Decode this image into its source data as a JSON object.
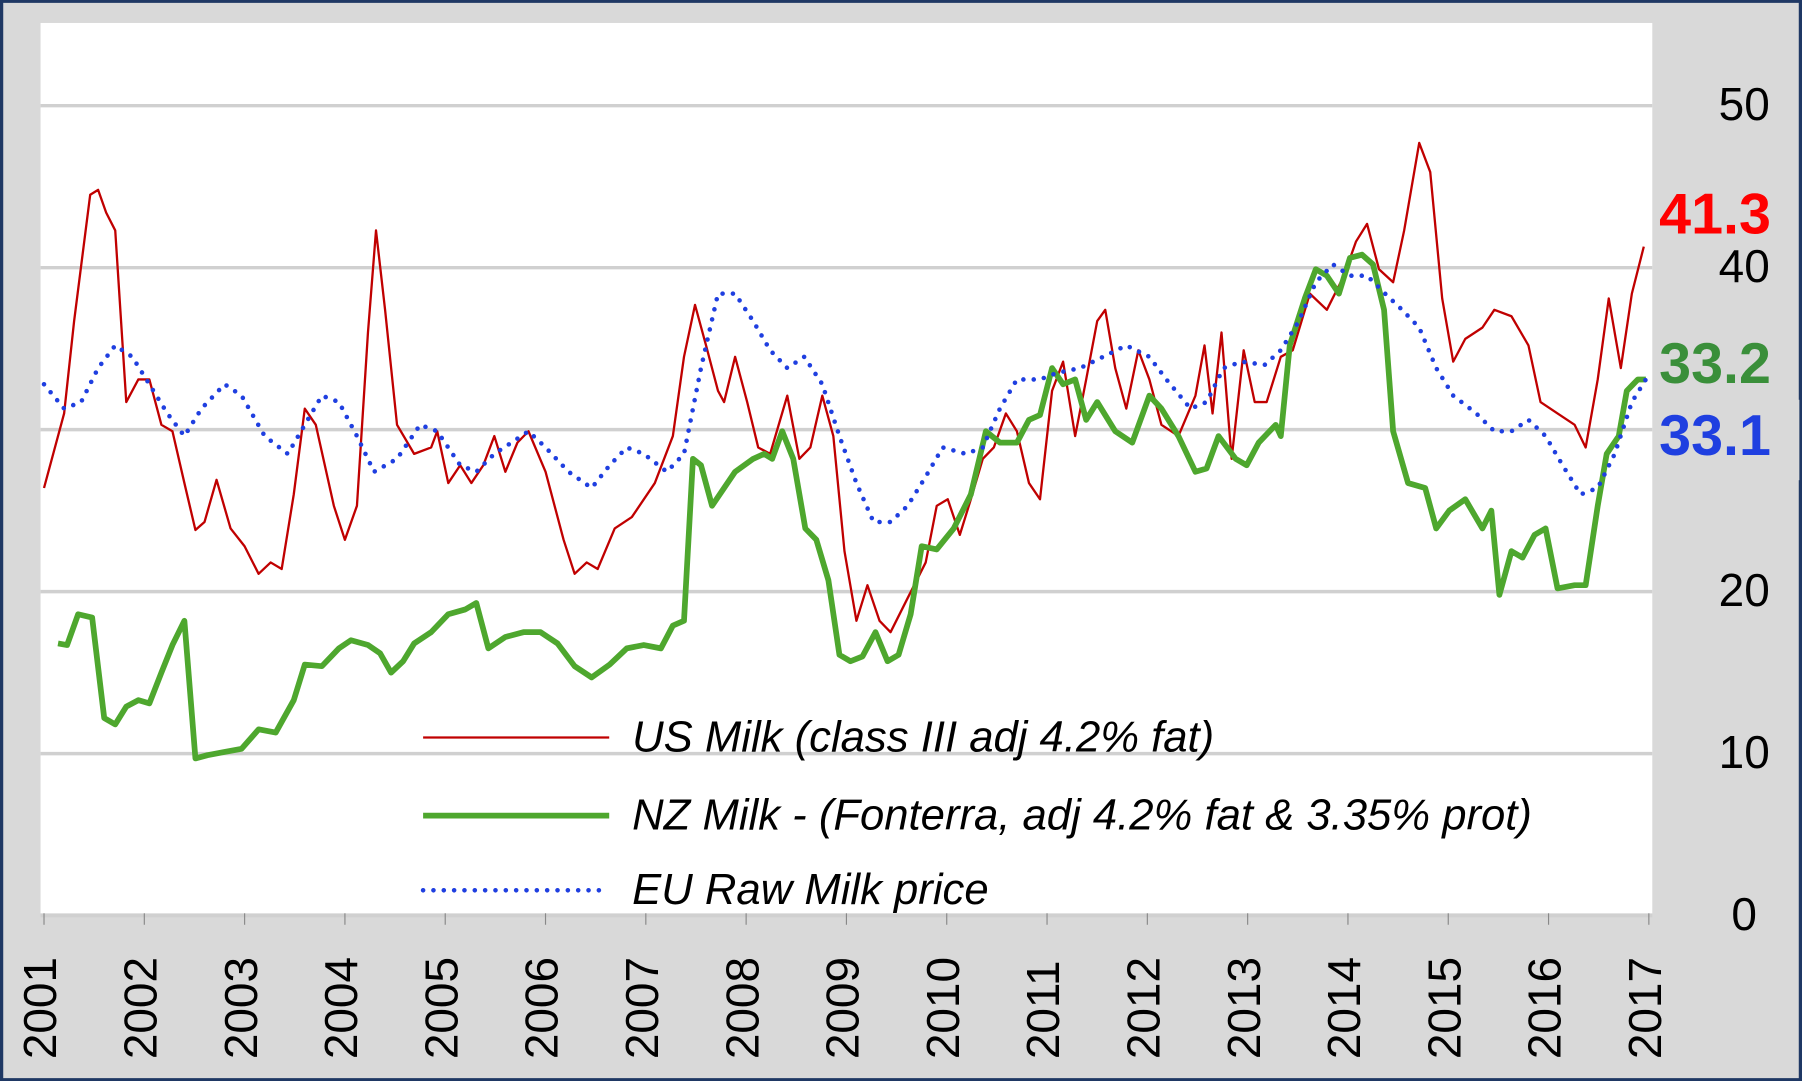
{
  "chart_data": {
    "type": "line",
    "ylim": [
      0,
      50
    ],
    "yticks": [
      0,
      10,
      20,
      30,
      40,
      50
    ],
    "grid": true,
    "yaxis_side": "right",
    "xlim": [
      2001,
      2017
    ],
    "xticks": [
      2001,
      2002,
      2003,
      2004,
      2005,
      2006,
      2007,
      2008,
      2009,
      2010,
      2011,
      2012,
      2013,
      2014,
      2015,
      2016,
      2017
    ],
    "legend": "bottom",
    "annotations": [
      {
        "text": "41.3",
        "color": "#ff0000"
      },
      {
        "text": "33.2",
        "color": "#3a8f3a"
      },
      {
        "text": "33.1",
        "color": "#1f3fe0"
      }
    ],
    "series": [
      {
        "name": "US Milk (class III adj 4.2% fat)",
        "color": "#c00000",
        "style": "solid",
        "width": 2,
        "x": [
          2001.0,
          2001.2,
          2001.3,
          2001.46,
          2001.54,
          2001.62,
          2001.71,
          2001.82,
          2001.94,
          2002.05,
          2002.17,
          2002.28,
          2002.4,
          2002.51,
          2002.6,
          2002.72,
          2002.86,
          2003.0,
          2003.14,
          2003.26,
          2003.37,
          2003.49,
          2003.6,
          2003.71,
          2003.89,
          2004.0,
          2004.12,
          2004.23,
          2004.31,
          2004.4,
          2004.52,
          2004.69,
          2004.86,
          2004.92,
          2005.03,
          2005.15,
          2005.26,
          2005.38,
          2005.49,
          2005.6,
          2005.72,
          2005.83,
          2006.0,
          2006.18,
          2006.29,
          2006.41,
          2006.52,
          2006.69,
          2006.86,
          2007.09,
          2007.27,
          2007.38,
          2007.49,
          2007.6,
          2007.72,
          2007.78,
          2007.89,
          2008.01,
          2008.12,
          2008.24,
          2008.41,
          2008.53,
          2008.64,
          2008.76,
          2008.87,
          2008.98,
          2009.1,
          2009.21,
          2009.33,
          2009.44,
          2009.61,
          2009.79,
          2009.9,
          2010.01,
          2010.13,
          2010.24,
          2010.36,
          2010.47,
          2010.59,
          2010.7,
          2010.82,
          2010.93,
          2011.05,
          2011.16,
          2011.28,
          2011.39,
          2011.5,
          2011.58,
          2011.68,
          2011.79,
          2011.91,
          2012.02,
          2012.14,
          2012.31,
          2012.48,
          2012.57,
          2012.65,
          2012.74,
          2012.84,
          2012.96,
          2013.07,
          2013.19,
          2013.33,
          2013.45,
          2013.62,
          2013.79,
          2013.96,
          2014.08,
          2014.19,
          2014.31,
          2014.45,
          2014.56,
          2014.71,
          2014.82,
          2014.94,
          2015.05,
          2015.17,
          2015.34,
          2015.46,
          2015.63,
          2015.8,
          2015.92,
          2016.09,
          2016.26,
          2016.37,
          2016.49,
          2016.6,
          2016.72,
          2016.83,
          2016.95
        ],
        "values": [
          26.4,
          31,
          36.7,
          44.5,
          44.8,
          43.4,
          42.3,
          31.7,
          33.1,
          33.1,
          30.3,
          29.9,
          26.7,
          23.8,
          24.3,
          26.9,
          23.9,
          22.8,
          21.1,
          21.8,
          21.4,
          26,
          31.3,
          30.3,
          25.3,
          23.2,
          25.3,
          36,
          42.3,
          37.4,
          30.3,
          28.5,
          28.9,
          29.9,
          26.7,
          27.8,
          26.7,
          27.8,
          29.6,
          27.4,
          29.2,
          29.9,
          27.4,
          23.2,
          21.1,
          21.8,
          21.4,
          23.9,
          24.6,
          26.7,
          29.6,
          34.5,
          37.7,
          35.2,
          32.4,
          31.7,
          34.5,
          31.7,
          28.9,
          28.5,
          32.1,
          28.2,
          28.9,
          32.1,
          29.6,
          22.5,
          18.2,
          20.4,
          18.2,
          17.5,
          19.6,
          21.8,
          25.3,
          25.7,
          23.5,
          25.7,
          28.2,
          28.9,
          31,
          29.9,
          26.7,
          25.7,
          32.4,
          34.2,
          29.6,
          33.1,
          36.7,
          37.4,
          33.8,
          31.3,
          34.9,
          33.1,
          30.3,
          29.6,
          32.1,
          35.2,
          31,
          36,
          28.2,
          34.9,
          31.7,
          31.7,
          34.5,
          34.9,
          38.4,
          37.4,
          39.5,
          41.6,
          42.7,
          39.9,
          39.1,
          42.3,
          47.7,
          45.9,
          38.1,
          34.2,
          35.6,
          36.3,
          37.4,
          37,
          35.2,
          31.7,
          31,
          30.3,
          28.9,
          33.1,
          38.1,
          33.8,
          38.4,
          41.3
        ]
      },
      {
        "name": "NZ Milk - (Fonterra, adj 4.2% fat & 3.35% prot)",
        "color": "#4ea72e",
        "style": "solid",
        "width": 5,
        "x": [
          2001.14,
          2001.23,
          2001.34,
          2001.48,
          2001.6,
          2001.71,
          2001.82,
          2001.94,
          2002.05,
          2002.17,
          2002.28,
          2002.4,
          2002.51,
          2002.63,
          2002.8,
          2002.97,
          2003.14,
          2003.31,
          2003.49,
          2003.6,
          2003.77,
          2003.94,
          2004.06,
          2004.23,
          2004.35,
          2004.46,
          2004.58,
          2004.69,
          2004.86,
          2005.03,
          2005.2,
          2005.31,
          2005.43,
          2005.6,
          2005.78,
          2005.95,
          2006.12,
          2006.29,
          2006.46,
          2006.64,
          2006.81,
          2006.98,
          2007.15,
          2007.27,
          2007.38,
          2007.47,
          2007.55,
          2007.66,
          2007.78,
          2007.89,
          2008.07,
          2008.18,
          2008.26,
          2008.36,
          2008.47,
          2008.59,
          2008.7,
          2008.82,
          2008.93,
          2009.04,
          2009.16,
          2009.29,
          2009.41,
          2009.52,
          2009.64,
          2009.75,
          2009.9,
          2010.07,
          2010.24,
          2010.39,
          2010.53,
          2010.7,
          2010.82,
          2010.93,
          2011.05,
          2011.16,
          2011.28,
          2011.39,
          2011.5,
          2011.68,
          2011.85,
          2012.02,
          2012.14,
          2012.31,
          2012.48,
          2012.59,
          2012.71,
          2012.88,
          2012.99,
          2013.11,
          2013.28,
          2013.33,
          2013.42,
          2013.57,
          2013.68,
          2013.79,
          2013.91,
          2014.02,
          2014.14,
          2014.25,
          2014.36,
          2014.45,
          2014.6,
          2014.77,
          2014.88,
          2015.01,
          2015.17,
          2015.34,
          2015.43,
          2015.51,
          2015.63,
          2015.74,
          2015.86,
          2015.97,
          2016.09,
          2016.26,
          2016.37,
          2016.49,
          2016.58,
          2016.7,
          2016.78,
          2016.89,
          2016.97
        ],
        "values": [
          16.8,
          16.7,
          18.6,
          18.4,
          12.2,
          11.8,
          12.9,
          13.3,
          13.1,
          15,
          16.7,
          18.2,
          9.7,
          9.9,
          10.1,
          10.3,
          11.5,
          11.3,
          13.3,
          15.5,
          15.4,
          16.5,
          17,
          16.7,
          16.2,
          15,
          15.7,
          16.8,
          17.5,
          18.6,
          18.9,
          19.3,
          16.5,
          17.2,
          17.5,
          17.5,
          16.8,
          15.4,
          14.7,
          15.5,
          16.5,
          16.7,
          16.5,
          17.9,
          18.2,
          28.2,
          27.8,
          25.3,
          26.4,
          27.4,
          28.2,
          28.5,
          28.2,
          29.9,
          28.2,
          23.9,
          23.2,
          20.7,
          16.1,
          15.7,
          16,
          17.5,
          15.7,
          16.1,
          18.6,
          22.8,
          22.6,
          23.9,
          26,
          29.9,
          29.2,
          29.2,
          30.6,
          30.9,
          33.8,
          32.8,
          33.1,
          30.6,
          31.7,
          29.9,
          29.2,
          32.1,
          31.3,
          29.6,
          27.4,
          27.6,
          29.6,
          28.2,
          27.8,
          29.2,
          30.3,
          29.6,
          35.2,
          38.1,
          39.9,
          39.5,
          38.4,
          40.6,
          40.8,
          40.2,
          37.4,
          29.9,
          26.7,
          26.4,
          23.9,
          25,
          25.7,
          23.9,
          25,
          19.8,
          22.5,
          22.1,
          23.5,
          23.9,
          20.2,
          20.4,
          20.4,
          25.3,
          28.5,
          29.6,
          32.4,
          33.1,
          33.1
        ]
      },
      {
        "name": "EU Raw Milk price",
        "color": "#1f3fe0",
        "style": "dotted",
        "width": 4,
        "x": [
          2001.0,
          2001.2,
          2001.37,
          2001.54,
          2001.71,
          2001.88,
          2002.05,
          2002.23,
          2002.4,
          2002.57,
          2002.8,
          2002.97,
          2003.2,
          2003.43,
          2003.6,
          2003.77,
          2003.94,
          2004.12,
          2004.29,
          2004.52,
          2004.75,
          2004.92,
          2005.15,
          2005.31,
          2005.49,
          2005.66,
          2005.83,
          2006.0,
          2006.23,
          2006.46,
          2006.64,
          2006.81,
          2006.98,
          2007.21,
          2007.38,
          2007.55,
          2007.72,
          2007.89,
          2008.07,
          2008.24,
          2008.41,
          2008.58,
          2008.76,
          2008.93,
          2009.1,
          2009.27,
          2009.44,
          2009.61,
          2009.79,
          2009.96,
          2010.19,
          2010.36,
          2010.53,
          2010.7,
          2010.93,
          2011.1,
          2011.33,
          2011.56,
          2011.79,
          2012.02,
          2012.19,
          2012.43,
          2012.59,
          2012.76,
          2012.94,
          2013.17,
          2013.33,
          2013.51,
          2013.68,
          2013.85,
          2014.02,
          2014.19,
          2014.37,
          2014.54,
          2014.71,
          2014.88,
          2015.05,
          2015.28,
          2015.46,
          2015.63,
          2015.8,
          2015.97,
          2016.14,
          2016.32,
          2016.49,
          2016.66,
          2016.83,
          2016.97
        ],
        "values": [
          32.8,
          31.3,
          31.7,
          33.8,
          35.2,
          34.5,
          32.8,
          31,
          29.6,
          31.3,
          32.8,
          32.1,
          29.6,
          28.5,
          30.3,
          32.1,
          31.7,
          29.6,
          27.4,
          28.2,
          30.3,
          29.9,
          27.8,
          27.4,
          28.5,
          29.2,
          29.9,
          28.9,
          27.4,
          26.4,
          27.8,
          28.9,
          28.5,
          27.4,
          28.5,
          33.8,
          38.4,
          38.4,
          36.7,
          34.9,
          33.8,
          34.5,
          32.8,
          29.6,
          26.7,
          24.3,
          24.3,
          25.3,
          27.1,
          28.9,
          28.5,
          28.9,
          31.3,
          33.1,
          33.1,
          33.5,
          33.8,
          34.5,
          35.2,
          34.5,
          33.1,
          31.3,
          31.7,
          33.8,
          34.2,
          34,
          34.9,
          36.7,
          39.1,
          40.2,
          39.5,
          39.5,
          38.4,
          37.4,
          36.3,
          33.8,
          32.1,
          31,
          29.9,
          29.9,
          30.6,
          29.6,
          27.8,
          26,
          26.4,
          28.5,
          31.7,
          33.1
        ]
      }
    ]
  }
}
